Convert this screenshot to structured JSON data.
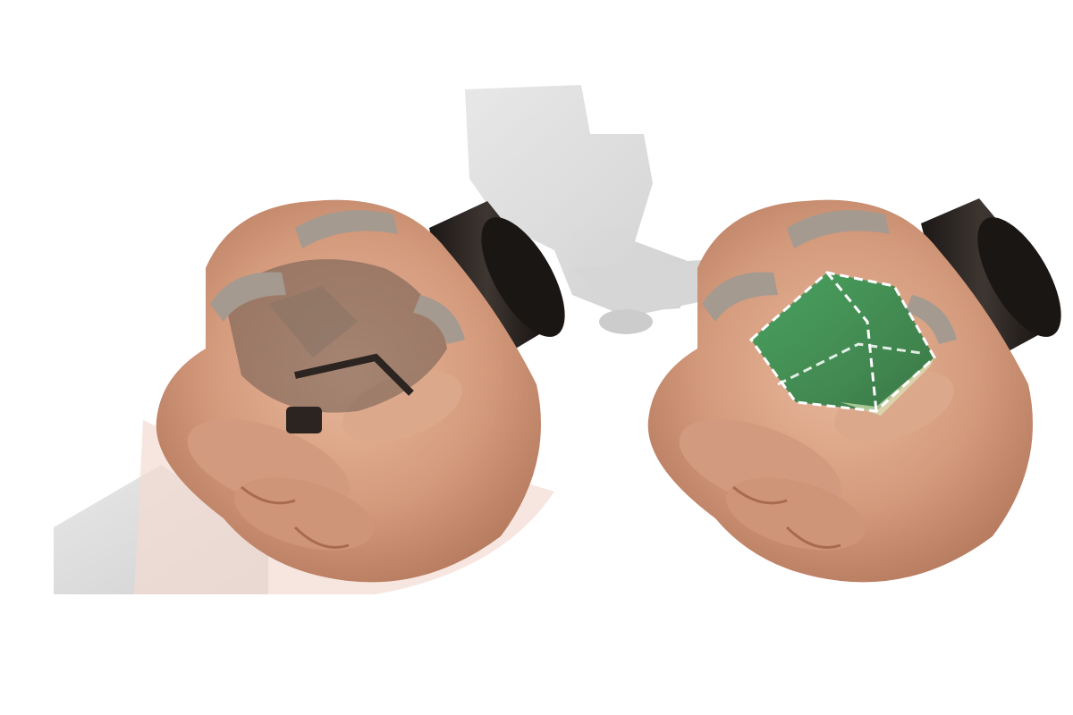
{
  "scene": {
    "description_labels": [],
    "panels": [
      {
        "id": "left",
        "overlay": "none"
      },
      {
        "id": "right",
        "overlay": "green-tracked-region"
      }
    ],
    "colors": {
      "background": "#ffffff",
      "skin": "#d9a184",
      "skin_shadow": "#a86a50",
      "device_dark": "#2a2522",
      "device_frame": "#4b4038",
      "strap": "#9e958b",
      "robot_ghost": "#d6d6d6",
      "overlay_green": "#2f8f4e",
      "overlay_outline": "#ffffff"
    }
  }
}
